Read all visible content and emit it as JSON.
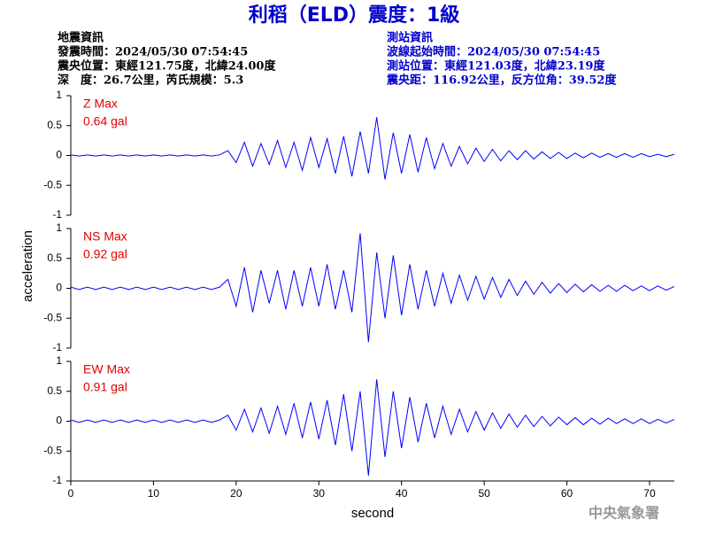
{
  "header": {
    "title": "利稻（ELD）震度：1級",
    "left": [
      "地震資訊",
      "發震時間：2024/05/30 07:54:45",
      "震央位置：東經121.75度，北緯24.00度",
      "深　度：26.7公里，芮氏規模：5.3"
    ],
    "right": [
      "測站資訊",
      "波線起始時間：2024/05/30 07:54:45",
      "測站位置：東經121.03度，北緯23.19度",
      "震央距：116.92公里，反方位角：39.52度"
    ]
  },
  "footer": "中央氣象署",
  "chart_data": [
    {
      "type": "line",
      "title": "Z Max",
      "subtitle": "0.64 gal",
      "color": "#0000ff",
      "xlim": [
        0,
        73
      ],
      "ylim": [
        -1,
        1
      ],
      "yticks": [
        1,
        0.5,
        0,
        -0.5,
        -1
      ],
      "x": [
        0,
        1,
        2,
        3,
        4,
        5,
        6,
        7,
        8,
        9,
        10,
        11,
        12,
        13,
        14,
        15,
        16,
        17,
        18,
        19,
        20,
        21,
        22,
        23,
        24,
        25,
        26,
        27,
        28,
        29,
        30,
        31,
        32,
        33,
        34,
        35,
        36,
        37,
        38,
        39,
        40,
        41,
        42,
        43,
        44,
        45,
        46,
        47,
        48,
        49,
        50,
        51,
        52,
        53,
        54,
        55,
        56,
        57,
        58,
        59,
        60,
        61,
        62,
        63,
        64,
        65,
        66,
        67,
        68,
        69,
        70,
        71,
        72,
        73
      ],
      "values": [
        0.01,
        -0.01,
        0.01,
        -0.01,
        0.01,
        -0.01,
        0.01,
        -0.01,
        0.01,
        -0.01,
        0.01,
        -0.01,
        0.01,
        -0.01,
        0.01,
        -0.01,
        0.01,
        -0.01,
        0.01,
        0.08,
        -0.12,
        0.22,
        -0.18,
        0.2,
        -0.15,
        0.25,
        -0.2,
        0.22,
        -0.25,
        0.3,
        -0.2,
        0.28,
        -0.3,
        0.32,
        -0.35,
        0.4,
        -0.3,
        0.64,
        -0.4,
        0.38,
        -0.3,
        0.35,
        -0.28,
        0.3,
        -0.22,
        0.2,
        -0.18,
        0.15,
        -0.14,
        0.12,
        -0.1,
        0.1,
        -0.09,
        0.08,
        -0.07,
        0.08,
        -0.06,
        0.06,
        -0.05,
        0.05,
        -0.05,
        0.04,
        -0.04,
        0.04,
        -0.03,
        0.03,
        -0.03,
        0.03,
        -0.03,
        0.03,
        -0.02,
        0.02,
        -0.02,
        0.02
      ]
    },
    {
      "type": "line",
      "title": "NS Max",
      "subtitle": "0.92 gal",
      "color": "#0000ff",
      "ylabel": "acceleration",
      "xlim": [
        0,
        73
      ],
      "ylim": [
        -1,
        1
      ],
      "yticks": [
        1,
        0.5,
        0,
        -0.5,
        -1
      ],
      "x": [
        0,
        1,
        2,
        3,
        4,
        5,
        6,
        7,
        8,
        9,
        10,
        11,
        12,
        13,
        14,
        15,
        16,
        17,
        18,
        19,
        20,
        21,
        22,
        23,
        24,
        25,
        26,
        27,
        28,
        29,
        30,
        31,
        32,
        33,
        34,
        35,
        36,
        37,
        38,
        39,
        40,
        41,
        42,
        43,
        44,
        45,
        46,
        47,
        48,
        49,
        50,
        51,
        52,
        53,
        54,
        55,
        56,
        57,
        58,
        59,
        60,
        61,
        62,
        63,
        64,
        65,
        66,
        67,
        68,
        69,
        70,
        71,
        72,
        73
      ],
      "values": [
        0.02,
        -0.02,
        0.02,
        -0.02,
        0.02,
        -0.02,
        0.02,
        -0.02,
        0.02,
        -0.02,
        0.02,
        -0.02,
        0.02,
        -0.02,
        0.02,
        -0.02,
        0.02,
        -0.02,
        0.02,
        0.15,
        -0.3,
        0.35,
        -0.4,
        0.3,
        -0.25,
        0.3,
        -0.35,
        0.3,
        -0.3,
        0.35,
        -0.3,
        0.4,
        -0.35,
        0.3,
        -0.4,
        0.92,
        -0.9,
        0.6,
        -0.5,
        0.55,
        -0.45,
        0.4,
        -0.35,
        0.3,
        -0.3,
        0.25,
        -0.25,
        0.22,
        -0.2,
        0.2,
        -0.18,
        0.18,
        -0.15,
        0.15,
        -0.12,
        0.12,
        -0.1,
        0.1,
        -0.08,
        0.08,
        -0.07,
        0.07,
        -0.06,
        0.06,
        -0.05,
        0.05,
        -0.05,
        0.05,
        -0.04,
        0.04,
        -0.04,
        0.04,
        -0.03,
        0.03
      ]
    },
    {
      "type": "line",
      "title": "EW Max",
      "subtitle": "0.91 gal",
      "color": "#0000ff",
      "xlabel": "second",
      "xlim": [
        0,
        73
      ],
      "xticks": [
        0,
        10,
        20,
        30,
        40,
        50,
        60,
        70
      ],
      "ylim": [
        -1,
        1
      ],
      "yticks": [
        1,
        0.5,
        0,
        -0.5,
        -1
      ],
      "x": [
        0,
        1,
        2,
        3,
        4,
        5,
        6,
        7,
        8,
        9,
        10,
        11,
        12,
        13,
        14,
        15,
        16,
        17,
        18,
        19,
        20,
        21,
        22,
        23,
        24,
        25,
        26,
        27,
        28,
        29,
        30,
        31,
        32,
        33,
        34,
        35,
        36,
        37,
        38,
        39,
        40,
        41,
        42,
        43,
        44,
        45,
        46,
        47,
        48,
        49,
        50,
        51,
        52,
        53,
        54,
        55,
        56,
        57,
        58,
        59,
        60,
        61,
        62,
        63,
        64,
        65,
        66,
        67,
        68,
        69,
        70,
        71,
        72,
        73
      ],
      "values": [
        0.02,
        -0.02,
        0.02,
        -0.02,
        0.02,
        -0.02,
        0.02,
        -0.02,
        0.02,
        -0.02,
        0.02,
        -0.02,
        0.02,
        -0.02,
        0.02,
        -0.02,
        0.02,
        -0.02,
        0.02,
        0.1,
        -0.15,
        0.2,
        -0.18,
        0.22,
        -0.2,
        0.25,
        -0.22,
        0.3,
        -0.28,
        0.32,
        -0.3,
        0.35,
        -0.4,
        0.45,
        -0.5,
        0.5,
        -0.91,
        0.7,
        -0.6,
        0.5,
        -0.45,
        0.4,
        -0.35,
        0.3,
        -0.28,
        0.25,
        -0.22,
        0.2,
        -0.18,
        0.16,
        -0.15,
        0.14,
        -0.12,
        0.12,
        -0.1,
        0.1,
        -0.09,
        0.08,
        -0.08,
        0.07,
        -0.06,
        0.06,
        -0.06,
        0.05,
        -0.05,
        0.05,
        -0.04,
        0.04,
        -0.04,
        0.04,
        -0.04,
        0.03,
        -0.03,
        0.03
      ]
    }
  ]
}
